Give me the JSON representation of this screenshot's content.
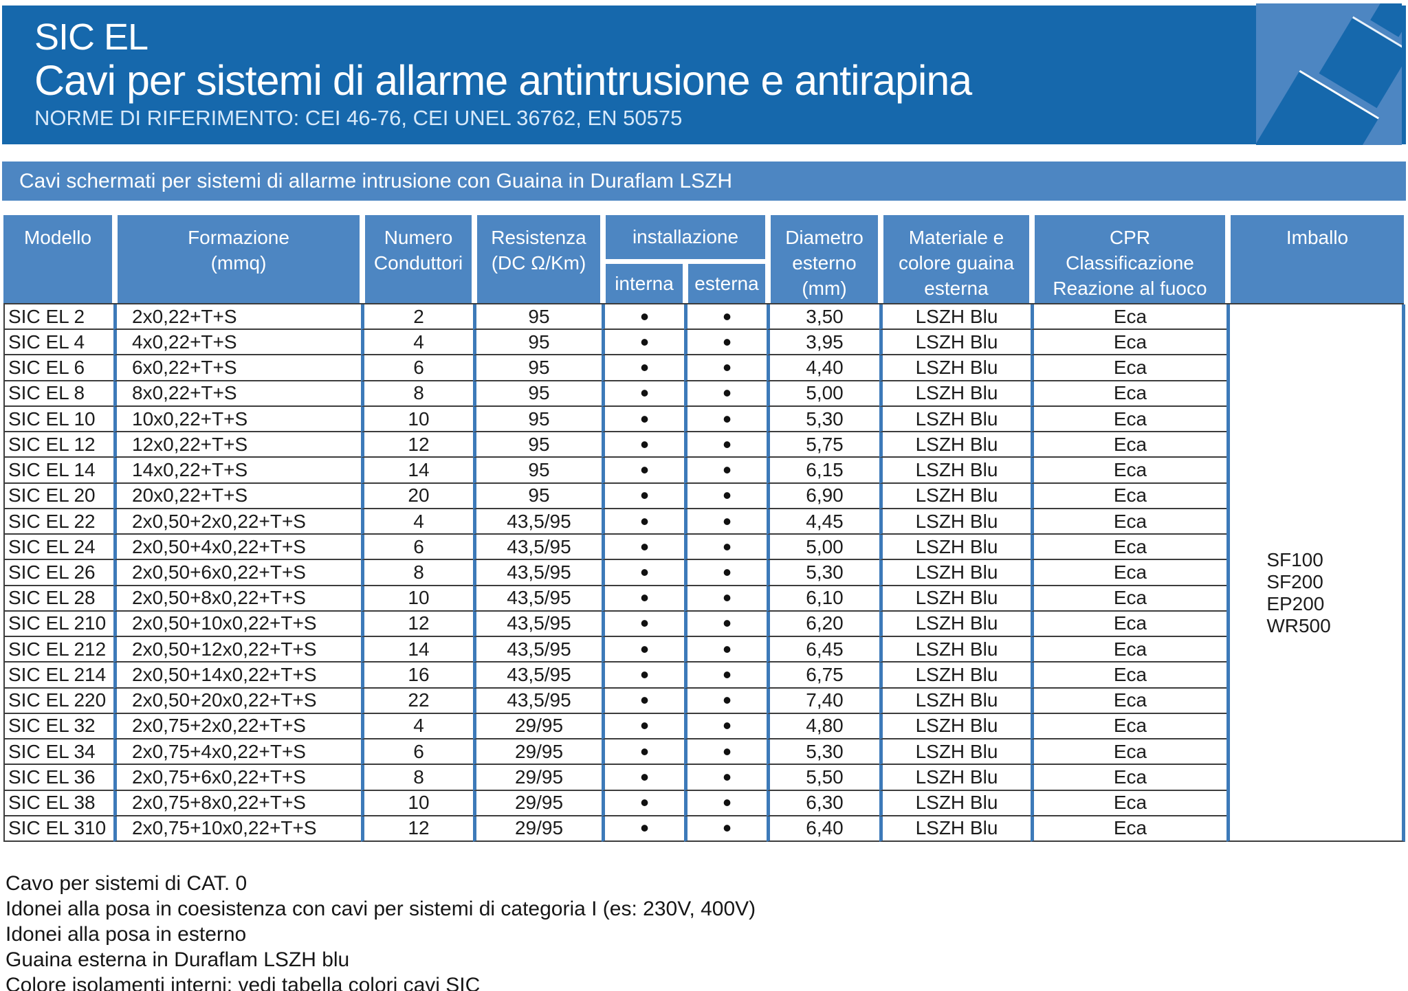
{
  "banner": {
    "product": "SIC EL",
    "title": "Cavi per sistemi di allarme antintrusione e antirapina",
    "norme": "NORME DI RIFERIMENTO: CEI 46-76, CEI UNEL 36762, EN 50575"
  },
  "subbanner": "Cavi schermati per sistemi di allarme intrusione con Guaina in Duraflam LSZH",
  "colors": {
    "banner_blue": "#1668ac",
    "header_blue": "#4d86c2",
    "grid_blue": "#3d7ab9"
  },
  "table": {
    "headers": {
      "modello": "Modello",
      "formazione": "Formazione\n(mmq)",
      "numero": "Numero\nConduttori",
      "resistenza": "Resistenza\n(DC Ω/Km)",
      "installazione": "installazione",
      "interna": "interna",
      "esterna": "esterna",
      "diametro": "Diametro\nesterno\n(mm)",
      "materiale": "Materiale e\ncolore guaina\nesterna",
      "cpr": "CPR\nClassificazione\nReazione al fuoco",
      "imballo": "Imballo"
    },
    "rows": [
      {
        "modello": "SIC EL 2",
        "formazione": "2x0,22+T+S",
        "numero": "2",
        "resistenza": "95",
        "interna": "•",
        "esterna": "•",
        "diametro": "3,50",
        "materiale": "LSZH Blu",
        "cpr": "Eca"
      },
      {
        "modello": "SIC EL 4",
        "formazione": "4x0,22+T+S",
        "numero": "4",
        "resistenza": "95",
        "interna": "•",
        "esterna": "•",
        "diametro": "3,95",
        "materiale": "LSZH Blu",
        "cpr": "Eca"
      },
      {
        "modello": "SIC EL 6",
        "formazione": "6x0,22+T+S",
        "numero": "6",
        "resistenza": "95",
        "interna": "•",
        "esterna": "•",
        "diametro": "4,40",
        "materiale": "LSZH Blu",
        "cpr": "Eca"
      },
      {
        "modello": "SIC EL 8",
        "formazione": "8x0,22+T+S",
        "numero": "8",
        "resistenza": "95",
        "interna": "•",
        "esterna": "•",
        "diametro": "5,00",
        "materiale": "LSZH Blu",
        "cpr": "Eca"
      },
      {
        "modello": "SIC EL 10",
        "formazione": "10x0,22+T+S",
        "numero": "10",
        "resistenza": "95",
        "interna": "•",
        "esterna": "•",
        "diametro": "5,30",
        "materiale": "LSZH Blu",
        "cpr": "Eca"
      },
      {
        "modello": "SIC EL 12",
        "formazione": "12x0,22+T+S",
        "numero": "12",
        "resistenza": "95",
        "interna": "•",
        "esterna": "•",
        "diametro": "5,75",
        "materiale": "LSZH Blu",
        "cpr": "Eca"
      },
      {
        "modello": "SIC EL 14",
        "formazione": "14x0,22+T+S",
        "numero": "14",
        "resistenza": "95",
        "interna": "•",
        "esterna": "•",
        "diametro": "6,15",
        "materiale": "LSZH Blu",
        "cpr": "Eca"
      },
      {
        "modello": "SIC EL 20",
        "formazione": "20x0,22+T+S",
        "numero": "20",
        "resistenza": "95",
        "interna": "•",
        "esterna": "•",
        "diametro": "6,90",
        "materiale": "LSZH Blu",
        "cpr": "Eca"
      },
      {
        "modello": "SIC EL 22",
        "formazione": "2x0,50+2x0,22+T+S",
        "numero": "4",
        "resistenza": "43,5/95",
        "interna": "•",
        "esterna": "•",
        "diametro": "4,45",
        "materiale": "LSZH Blu",
        "cpr": "Eca"
      },
      {
        "modello": "SIC EL 24",
        "formazione": "2x0,50+4x0,22+T+S",
        "numero": "6",
        "resistenza": "43,5/95",
        "interna": "•",
        "esterna": "•",
        "diametro": "5,00",
        "materiale": "LSZH Blu",
        "cpr": "Eca"
      },
      {
        "modello": "SIC EL 26",
        "formazione": "2x0,50+6x0,22+T+S",
        "numero": "8",
        "resistenza": "43,5/95",
        "interna": "•",
        "esterna": "•",
        "diametro": "5,30",
        "materiale": "LSZH Blu",
        "cpr": "Eca"
      },
      {
        "modello": "SIC EL 28",
        "formazione": "2x0,50+8x0,22+T+S",
        "numero": "10",
        "resistenza": "43,5/95",
        "interna": "•",
        "esterna": "•",
        "diametro": "6,10",
        "materiale": "LSZH Blu",
        "cpr": "Eca"
      },
      {
        "modello": "SIC EL 210",
        "formazione": "2x0,50+10x0,22+T+S",
        "numero": "12",
        "resistenza": "43,5/95",
        "interna": "•",
        "esterna": "•",
        "diametro": "6,20",
        "materiale": "LSZH Blu",
        "cpr": "Eca"
      },
      {
        "modello": "SIC EL 212",
        "formazione": "2x0,50+12x0,22+T+S",
        "numero": "14",
        "resistenza": "43,5/95",
        "interna": "•",
        "esterna": "•",
        "diametro": "6,45",
        "materiale": "LSZH Blu",
        "cpr": "Eca"
      },
      {
        "modello": "SIC EL 214",
        "formazione": "2x0,50+14x0,22+T+S",
        "numero": "16",
        "resistenza": "43,5/95",
        "interna": "•",
        "esterna": "•",
        "diametro": "6,75",
        "materiale": "LSZH Blu",
        "cpr": "Eca"
      },
      {
        "modello": "SIC EL 220",
        "formazione": "2x0,50+20x0,22+T+S",
        "numero": "22",
        "resistenza": "43,5/95",
        "interna": "•",
        "esterna": "•",
        "diametro": "7,40",
        "materiale": "LSZH Blu",
        "cpr": "Eca"
      },
      {
        "modello": "SIC EL 32",
        "formazione": "2x0,75+2x0,22+T+S",
        "numero": "4",
        "resistenza": "29/95",
        "interna": "•",
        "esterna": "•",
        "diametro": "4,80",
        "materiale": "LSZH Blu",
        "cpr": "Eca"
      },
      {
        "modello": "SIC EL 34",
        "formazione": "2x0,75+4x0,22+T+S",
        "numero": "6",
        "resistenza": "29/95",
        "interna": "•",
        "esterna": "•",
        "diametro": "5,30",
        "materiale": "LSZH Blu",
        "cpr": "Eca"
      },
      {
        "modello": "SIC EL 36",
        "formazione": "2x0,75+6x0,22+T+S",
        "numero": "8",
        "resistenza": "29/95",
        "interna": "•",
        "esterna": "•",
        "diametro": "5,50",
        "materiale": "LSZH Blu",
        "cpr": "Eca"
      },
      {
        "modello": "SIC EL 38",
        "formazione": "2x0,75+8x0,22+T+S",
        "numero": "10",
        "resistenza": "29/95",
        "interna": "•",
        "esterna": "•",
        "diametro": "6,30",
        "materiale": "LSZH Blu",
        "cpr": "Eca"
      },
      {
        "modello": "SIC EL 310",
        "formazione": "2x0,75+10x0,22+T+S",
        "numero": "12",
        "resistenza": "29/95",
        "interna": "•",
        "esterna": "•",
        "diametro": "6,40",
        "materiale": "LSZH Blu",
        "cpr": "Eca"
      }
    ],
    "imballo_codes": [
      "SF100",
      "SF200",
      "EP200",
      "WR500"
    ]
  },
  "notes": [
    "Cavo per sistemi di CAT. 0",
    "Idonei alla posa in coesistenza con cavi per sistemi di categoria I (es: 230V, 400V)",
    "Idonei alla posa in esterno",
    "Guaina esterna in Duraflam LSZH blu",
    "Colore isolamenti interni: vedi tabella colori cavi SIC"
  ]
}
